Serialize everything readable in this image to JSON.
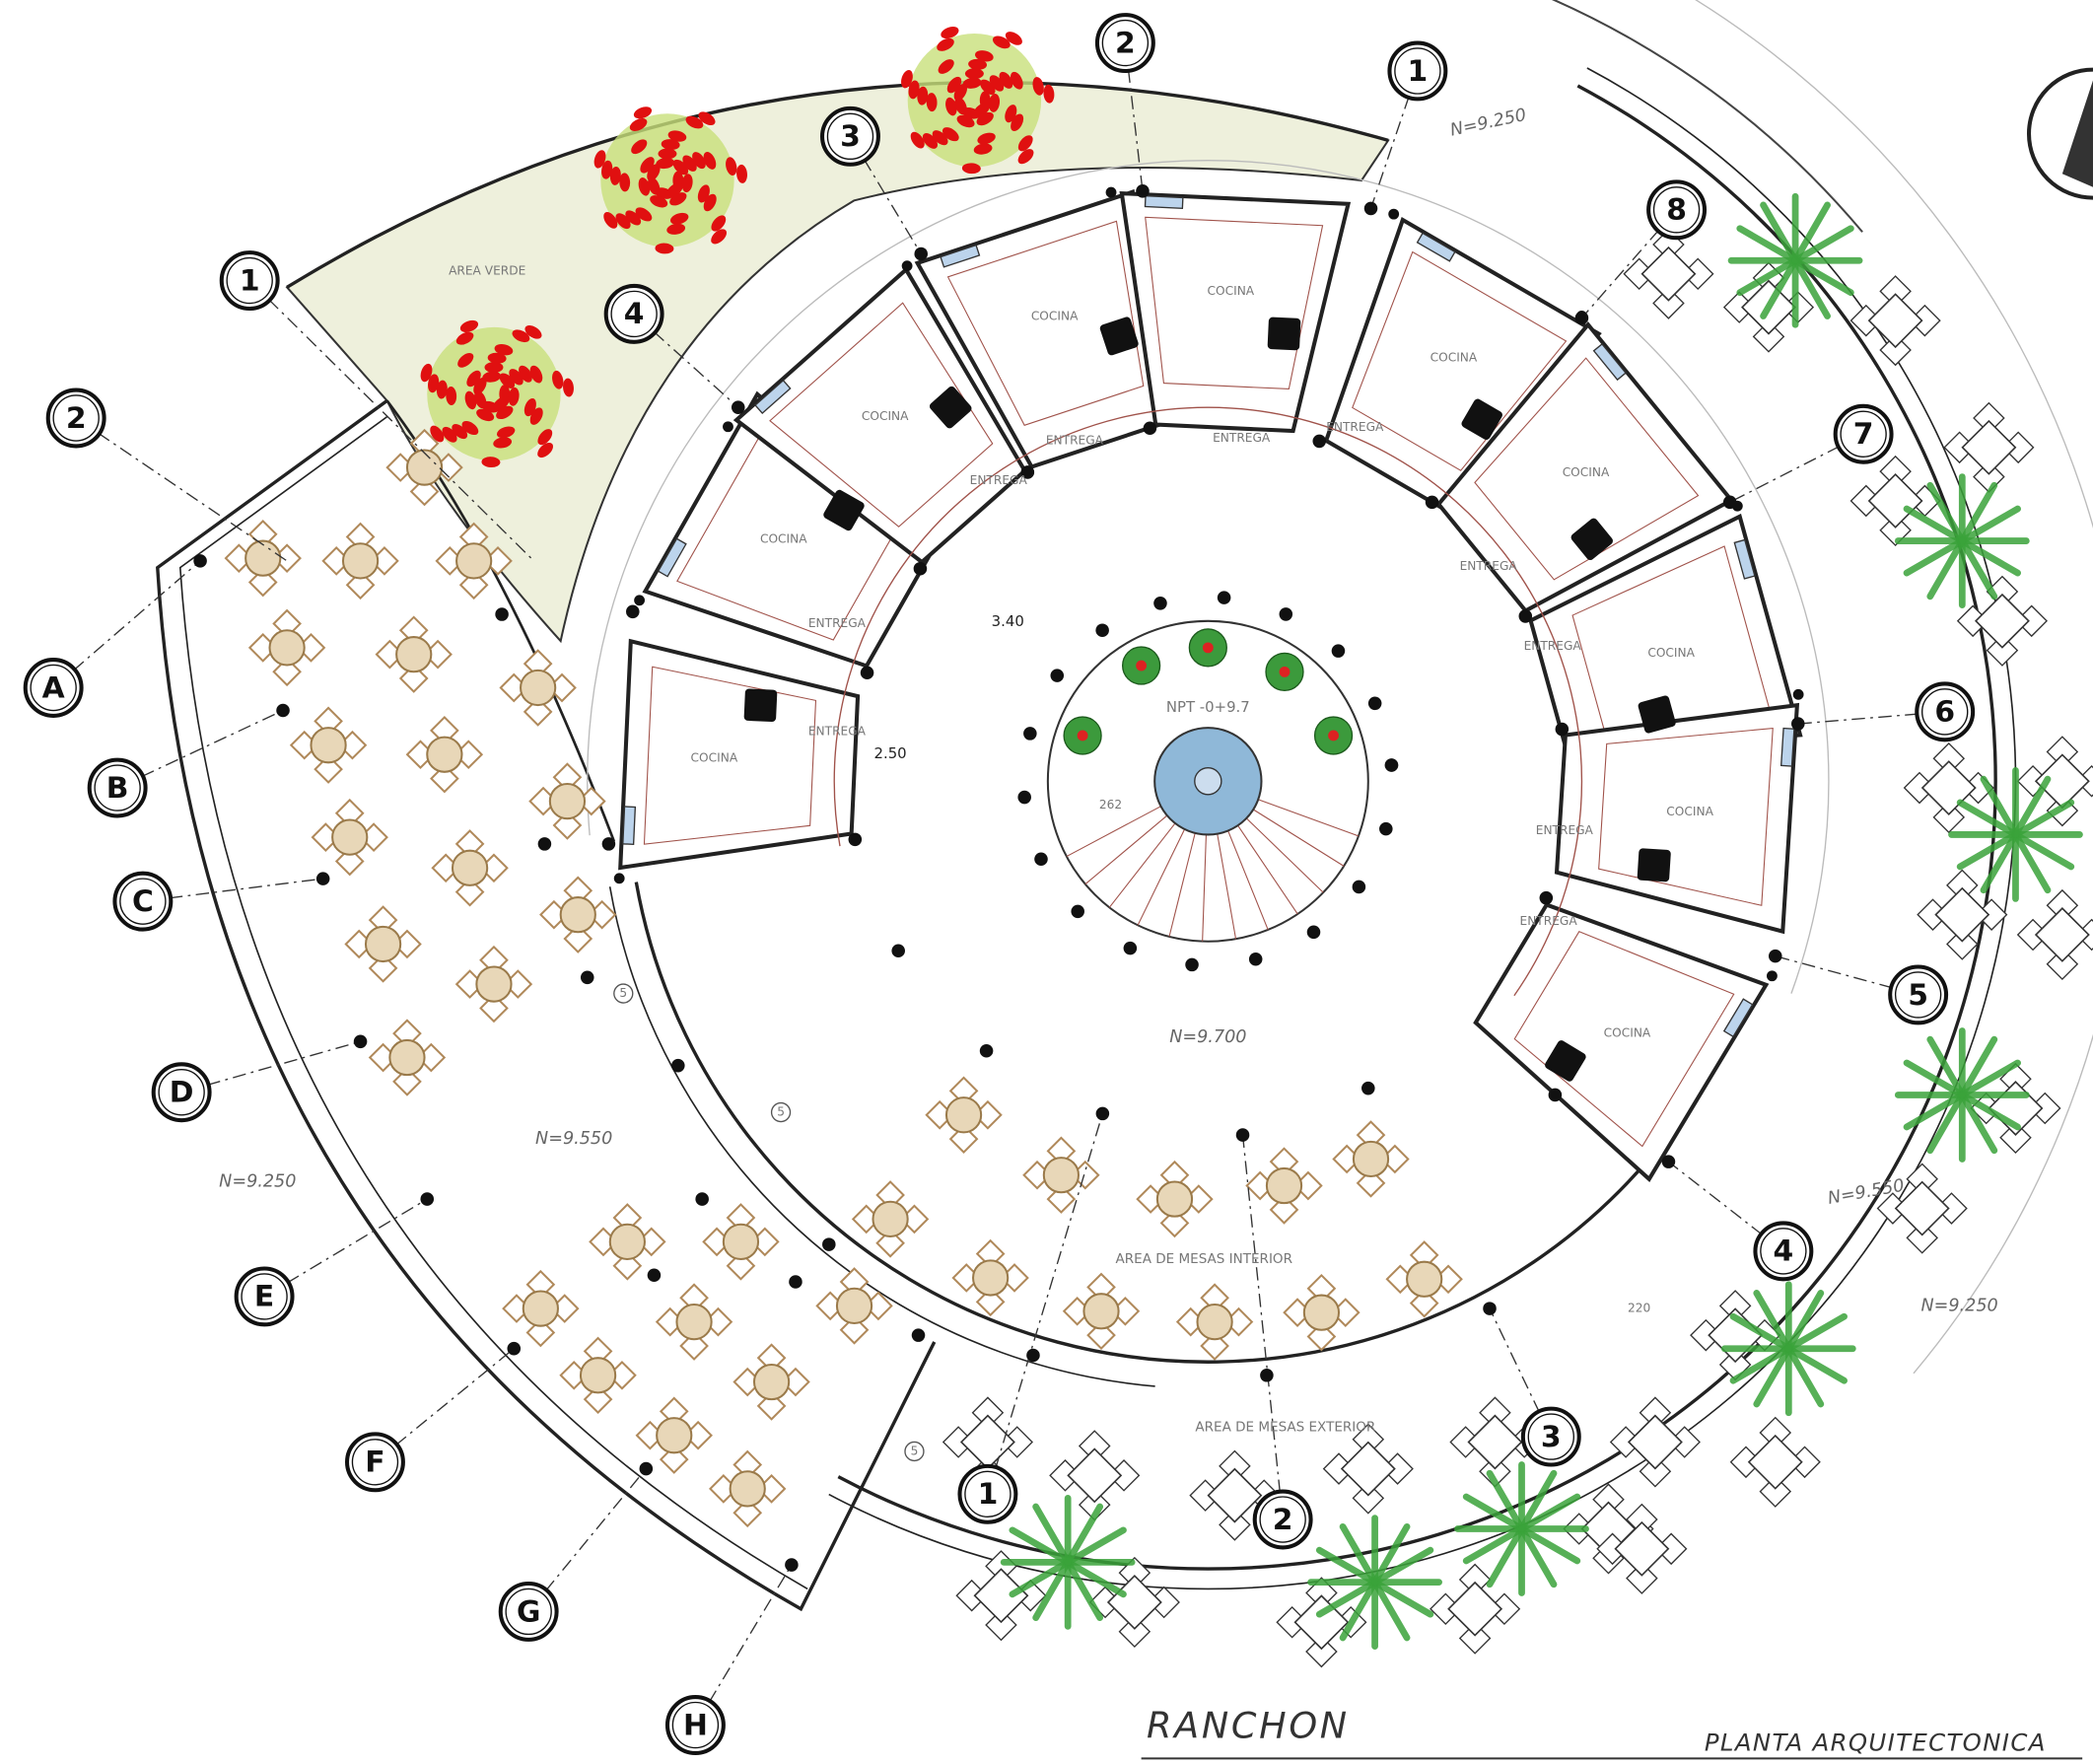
{
  "title": "RANCHON",
  "subtitle": "PLANTA ARQUITECTONICA",
  "grid_bubbles": [
    "1",
    "2",
    "A",
    "B",
    "C",
    "D",
    "E",
    "F",
    "G",
    "H",
    "3",
    "2",
    "1",
    "4",
    "8",
    "7",
    "6",
    "5",
    "4",
    "3",
    "1",
    "2"
  ],
  "kitchens": [
    "COCINA",
    "COCINA",
    "COCINA",
    "COCINA",
    "COCINA",
    "COCINA",
    "COCINA",
    "COCINA",
    "COCINA",
    "COCINA"
  ],
  "deliveries": [
    "ENTREGA",
    "ENTREGA",
    "ENTREGA",
    "ENTREGA",
    "ENTREGA",
    "ENTREGA",
    "ENTREGA",
    "ENTREGA",
    "ENTREGA",
    "ENTREGA"
  ],
  "labels": {
    "green_area": "AREA VERDE",
    "level_top": "N=9.250",
    "level_left": "N=9.250",
    "level_right_outer": "N=9.250",
    "level_right": "N=9.550",
    "level_left_inner": "N=9.550",
    "level_center": "N=9.700",
    "npt": "NPT -0+9.7",
    "dim_radius": "3.40",
    "dim_depth": "2.50",
    "dim_fountain": "262",
    "dim_step": "220",
    "interior": "AREA DE MESAS INTERIOR",
    "exterior": "AREA DE MESAS EXTERIOR"
  },
  "section_marks": [
    "5",
    "5",
    "5"
  ]
}
